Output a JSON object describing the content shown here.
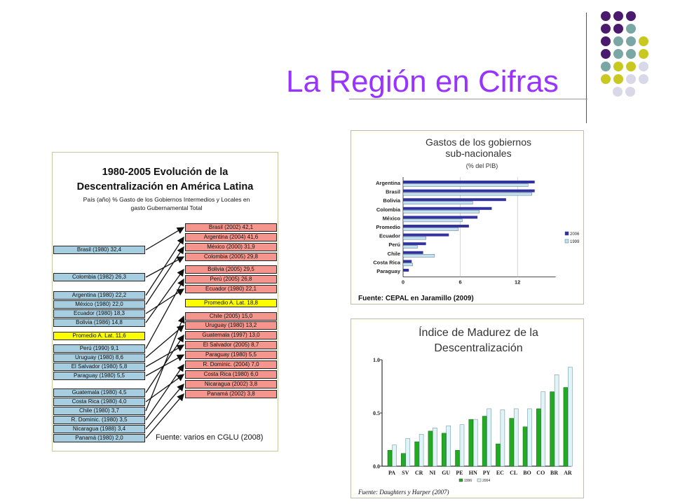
{
  "title": "La Región en Cifras",
  "left_panel": {
    "title1": "1980-2005 Evolución de la",
    "title2": "Descentralización en América Latina",
    "subtitle1": "País (año) % Gasto de los Gobiernos Intermedios y Locales en",
    "subtitle2": "gasto Gubernamental Total",
    "left_boxes": [
      "Brasil (1980) 32,4",
      "Colombia (1982) 26,3",
      "Argentina (1980) 22,2",
      "México (1980) 22,0",
      "Ecuador (1980) 18,3",
      "Bolivia (1986) 14,8",
      "Promedio A. Lat. 11,6",
      "Perú (1990) 9,1",
      "Uruguay (1980) 8,6",
      "El Salvador (1980) 5,8",
      "Paraguay (1980) 5,5",
      "Guatemala (1980) 4,5",
      "Costa Rica (1980) 4,0",
      "Chile (1980) 3,7",
      "R. Dominic. (1980) 3,5",
      "Nicaragua (1988) 3,4",
      "Panamá (1980) 2,0"
    ],
    "right_boxes": [
      "Brasil (2002) 42,1",
      "Argentina (2004) 41,6",
      "México (2000) 31,9",
      "Colombia (2005) 29,8",
      "Bolivia (2005) 29,5",
      "Perú (2005) 26,8",
      "Ecuador (1980) 22,1",
      "Promedio A. Lat. 18,8",
      "Chile (2005) 15,0",
      "Uruguay (1980) 13,2",
      "Guatemala (1997) 13,0",
      "El Salvador (2005) 8,7",
      "Paraguay (1980) 5,5",
      "R. Dominic. (2004) 7,0",
      "Costa Rica (1980) 6,0",
      "Nicaragua (2002) 3,8",
      "Panamá (2002) 3,8"
    ],
    "source": "Fuente: varios en CGLU (2008)"
  },
  "chart_data": [
    {
      "type": "bar",
      "title": "Gastos de los gobiernos sub-nacionales",
      "title_line1": "Gastos de los gobiernos",
      "title_line2": "sub-nacionales",
      "subtitle": "(% del PIB)",
      "orientation": "horizontal",
      "categories": [
        "Argentina",
        "Brasil",
        "Bolivia",
        "Colombia",
        "México",
        "Promedio",
        "Ecuador",
        "Perú",
        "Chile",
        "Costa Rica",
        "Paraguay"
      ],
      "series": [
        {
          "name": "2006",
          "color": "#3333a0",
          "values": [
            13.8,
            13.8,
            10.8,
            9.3,
            7.8,
            6.9,
            4.8,
            2.4,
            2.1,
            0.9,
            0.6
          ]
        },
        {
          "name": "1999",
          "color": "#bfe4f0",
          "values": [
            13.1,
            13.5,
            7.3,
            8.0,
            6.2,
            5.8,
            2.4,
            1.5,
            3.3,
            1.0,
            0.0
          ]
        }
      ],
      "xticks": [
        "0",
        "6",
        "12"
      ],
      "xlim": [
        0,
        16
      ],
      "legend_position": "right",
      "source": "Fuente: CEPAL en Jaramillo (2009)"
    },
    {
      "type": "bar",
      "title": "Índice de Madurez de la Descentralización",
      "title_line1": "Índice de Madurez de la",
      "title_line2": "Descentralización",
      "categories": [
        "PA",
        "SV",
        "CR",
        "NI",
        "GU",
        "PE",
        "HN",
        "PY",
        "EC",
        "CL",
        "BO",
        "CO",
        "BR",
        "AR"
      ],
      "series": [
        {
          "name": "1996",
          "color": "#22aa22",
          "values": [
            0.15,
            0.12,
            0.23,
            0.33,
            0.31,
            0.15,
            0.44,
            0.47,
            0.21,
            0.45,
            0.37,
            0.54,
            0.7,
            0.74
          ]
        },
        {
          "name": "2004",
          "color": "#e0f4f8",
          "values": [
            0.2,
            0.26,
            0.3,
            0.36,
            0.38,
            0.39,
            0.44,
            0.54,
            0.53,
            0.54,
            0.54,
            0.7,
            0.86,
            0.93
          ]
        }
      ],
      "yticks": [
        "0.0",
        "0.5",
        "1.0"
      ],
      "ylim": [
        0,
        1
      ],
      "legend_position": "bottom",
      "source": "Fuente: Daughters y Harper (2007)"
    }
  ],
  "colors": {
    "title": "#9933ff",
    "dot_purple": "#4b1a6e",
    "dot_teal": "#7aa6a6",
    "dot_olive": "#c8c820",
    "dot_light": "#d8d8e8"
  }
}
